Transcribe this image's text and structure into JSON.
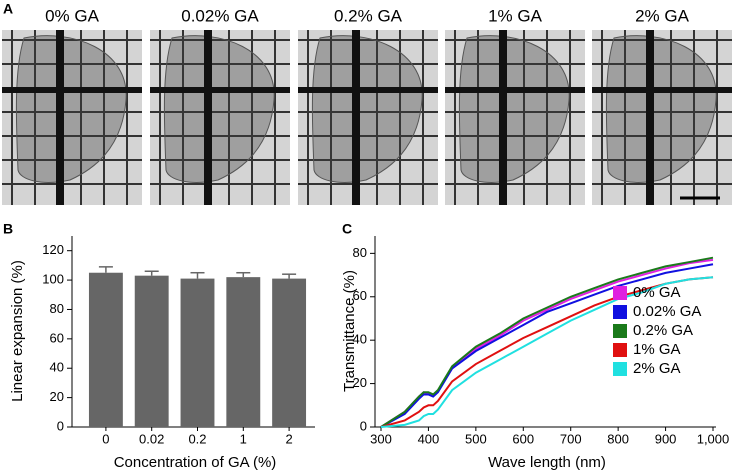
{
  "panel_a": {
    "label": "A",
    "titles": [
      "0% GA",
      "0.02% GA",
      "0.2% GA",
      "1% GA",
      "2% GA"
    ]
  },
  "chart_data": [
    {
      "type": "bar",
      "panel_label": "B",
      "x_label": "Concentration of GA (%)",
      "y_label": "Linear expansion (%)",
      "categories": [
        "0",
        "0.02",
        "0.2",
        "1",
        "2"
      ],
      "values": [
        105,
        103,
        101,
        102,
        101
      ],
      "errors": [
        4,
        3,
        4,
        3,
        3
      ],
      "color": "#666666",
      "ylim": [
        0,
        130
      ],
      "yticks": [
        0,
        20,
        40,
        60,
        80,
        100,
        120
      ],
      "grid": false
    },
    {
      "type": "line",
      "panel_label": "C",
      "x_label": "Wave length (nm)",
      "y_label": "Transmittance (%)",
      "x": [
        300,
        350,
        380,
        390,
        400,
        410,
        420,
        450,
        500,
        550,
        600,
        650,
        700,
        750,
        800,
        850,
        900,
        950,
        1000
      ],
      "series": [
        {
          "name": "0% GA",
          "color": "#e020e0",
          "values": [
            0,
            7,
            14,
            16,
            15.5,
            14.5,
            16.5,
            27,
            36,
            42,
            49,
            54,
            59,
            63,
            67,
            70,
            73,
            75.5,
            77
          ]
        },
        {
          "name": "0.02% GA",
          "color": "#1010e0",
          "values": [
            0,
            6,
            13,
            15,
            15,
            14,
            16,
            27,
            35,
            41,
            47,
            53,
            57,
            61,
            65,
            68,
            71,
            73,
            75
          ]
        },
        {
          "name": "0.2% GA",
          "color": "#1a7a1a",
          "values": [
            0,
            7,
            14,
            16,
            16,
            15,
            17,
            28,
            37,
            43,
            50,
            55,
            60,
            64,
            68,
            71,
            74,
            76,
            78
          ]
        },
        {
          "name": "1% GA",
          "color": "#e01010",
          "values": [
            0,
            3,
            7,
            9,
            10,
            10,
            12,
            21,
            29,
            35,
            41,
            46,
            51,
            56,
            60,
            63,
            66,
            68,
            69
          ]
        },
        {
          "name": "2% GA",
          "color": "#20e0e0",
          "values": [
            0,
            1,
            3,
            5,
            6,
            6,
            8,
            17,
            25,
            31,
            37,
            43,
            49,
            54,
            59,
            62,
            66,
            68,
            69
          ]
        }
      ],
      "xlim": [
        300,
        1000
      ],
      "xticks": [
        300,
        400,
        500,
        600,
        700,
        800,
        900,
        {
          "value": 1000,
          "label": "1,000"
        }
      ],
      "ylim": [
        0,
        88
      ],
      "yticks": [
        0,
        20,
        40,
        60,
        80
      ],
      "grid": false,
      "legend": "lower right"
    }
  ]
}
